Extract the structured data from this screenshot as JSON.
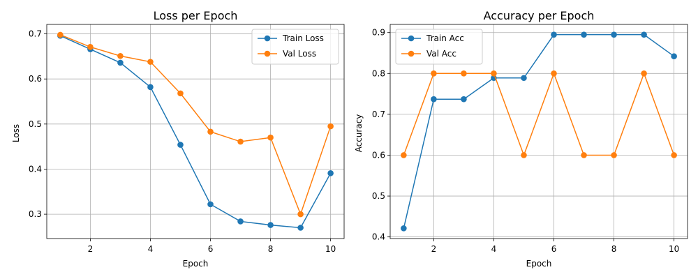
{
  "figure": {
    "colors": {
      "train": "#1f77b4",
      "val": "#ff7f0e",
      "grid": "#b0b0b0",
      "frame": "#000000"
    }
  },
  "chart_data": [
    {
      "type": "line",
      "title": "Loss per Epoch",
      "xlabel": "Epoch",
      "ylabel": "Loss",
      "xlim": [
        0.55,
        10.45
      ],
      "ylim": [
        0.246,
        0.721
      ],
      "xticks": [
        2,
        4,
        6,
        8,
        10
      ],
      "xtick_labels": [
        "2",
        "4",
        "6",
        "8",
        "10"
      ],
      "yticks": [
        0.3,
        0.4,
        0.5,
        0.6,
        0.7
      ],
      "ytick_labels": [
        "0.3",
        "0.4",
        "0.5",
        "0.6",
        "0.7"
      ],
      "grid": true,
      "legend": "top-right",
      "x": [
        1,
        2,
        3,
        4,
        5,
        6,
        7,
        8,
        9,
        10
      ],
      "series": [
        {
          "name": "Train Loss",
          "color": "#1f77b4",
          "marker": "circle",
          "values": [
            0.696,
            0.666,
            0.636,
            0.582,
            0.454,
            0.322,
            0.284,
            0.276,
            0.27,
            0.391
          ]
        },
        {
          "name": "Val Loss",
          "color": "#ff7f0e",
          "marker": "circle",
          "values": [
            0.698,
            0.671,
            0.651,
            0.638,
            0.568,
            0.483,
            0.461,
            0.47,
            0.3,
            0.495
          ]
        }
      ]
    },
    {
      "type": "line",
      "title": "Accuracy per Epoch",
      "xlabel": "Epoch",
      "ylabel": "Accuracy",
      "xlim": [
        0.55,
        10.45
      ],
      "ylim": [
        0.396,
        0.92
      ],
      "xticks": [
        2,
        4,
        6,
        8,
        10
      ],
      "xtick_labels": [
        "2",
        "4",
        "6",
        "8",
        "10"
      ],
      "yticks": [
        0.4,
        0.5,
        0.6,
        0.7,
        0.8,
        0.9
      ],
      "ytick_labels": [
        "0.4",
        "0.5",
        "0.6",
        "0.7",
        "0.8",
        "0.9"
      ],
      "grid": true,
      "legend": "top-left",
      "x": [
        1,
        2,
        3,
        4,
        5,
        6,
        7,
        8,
        9,
        10
      ],
      "series": [
        {
          "name": "Train Acc",
          "color": "#1f77b4",
          "marker": "circle",
          "values": [
            0.421,
            0.737,
            0.737,
            0.789,
            0.789,
            0.895,
            0.895,
            0.895,
            0.895,
            0.842
          ]
        },
        {
          "name": "Val Acc",
          "color": "#ff7f0e",
          "marker": "circle",
          "values": [
            0.6,
            0.8,
            0.8,
            0.8,
            0.6,
            0.8,
            0.6,
            0.6,
            0.8,
            0.6
          ]
        }
      ]
    }
  ]
}
